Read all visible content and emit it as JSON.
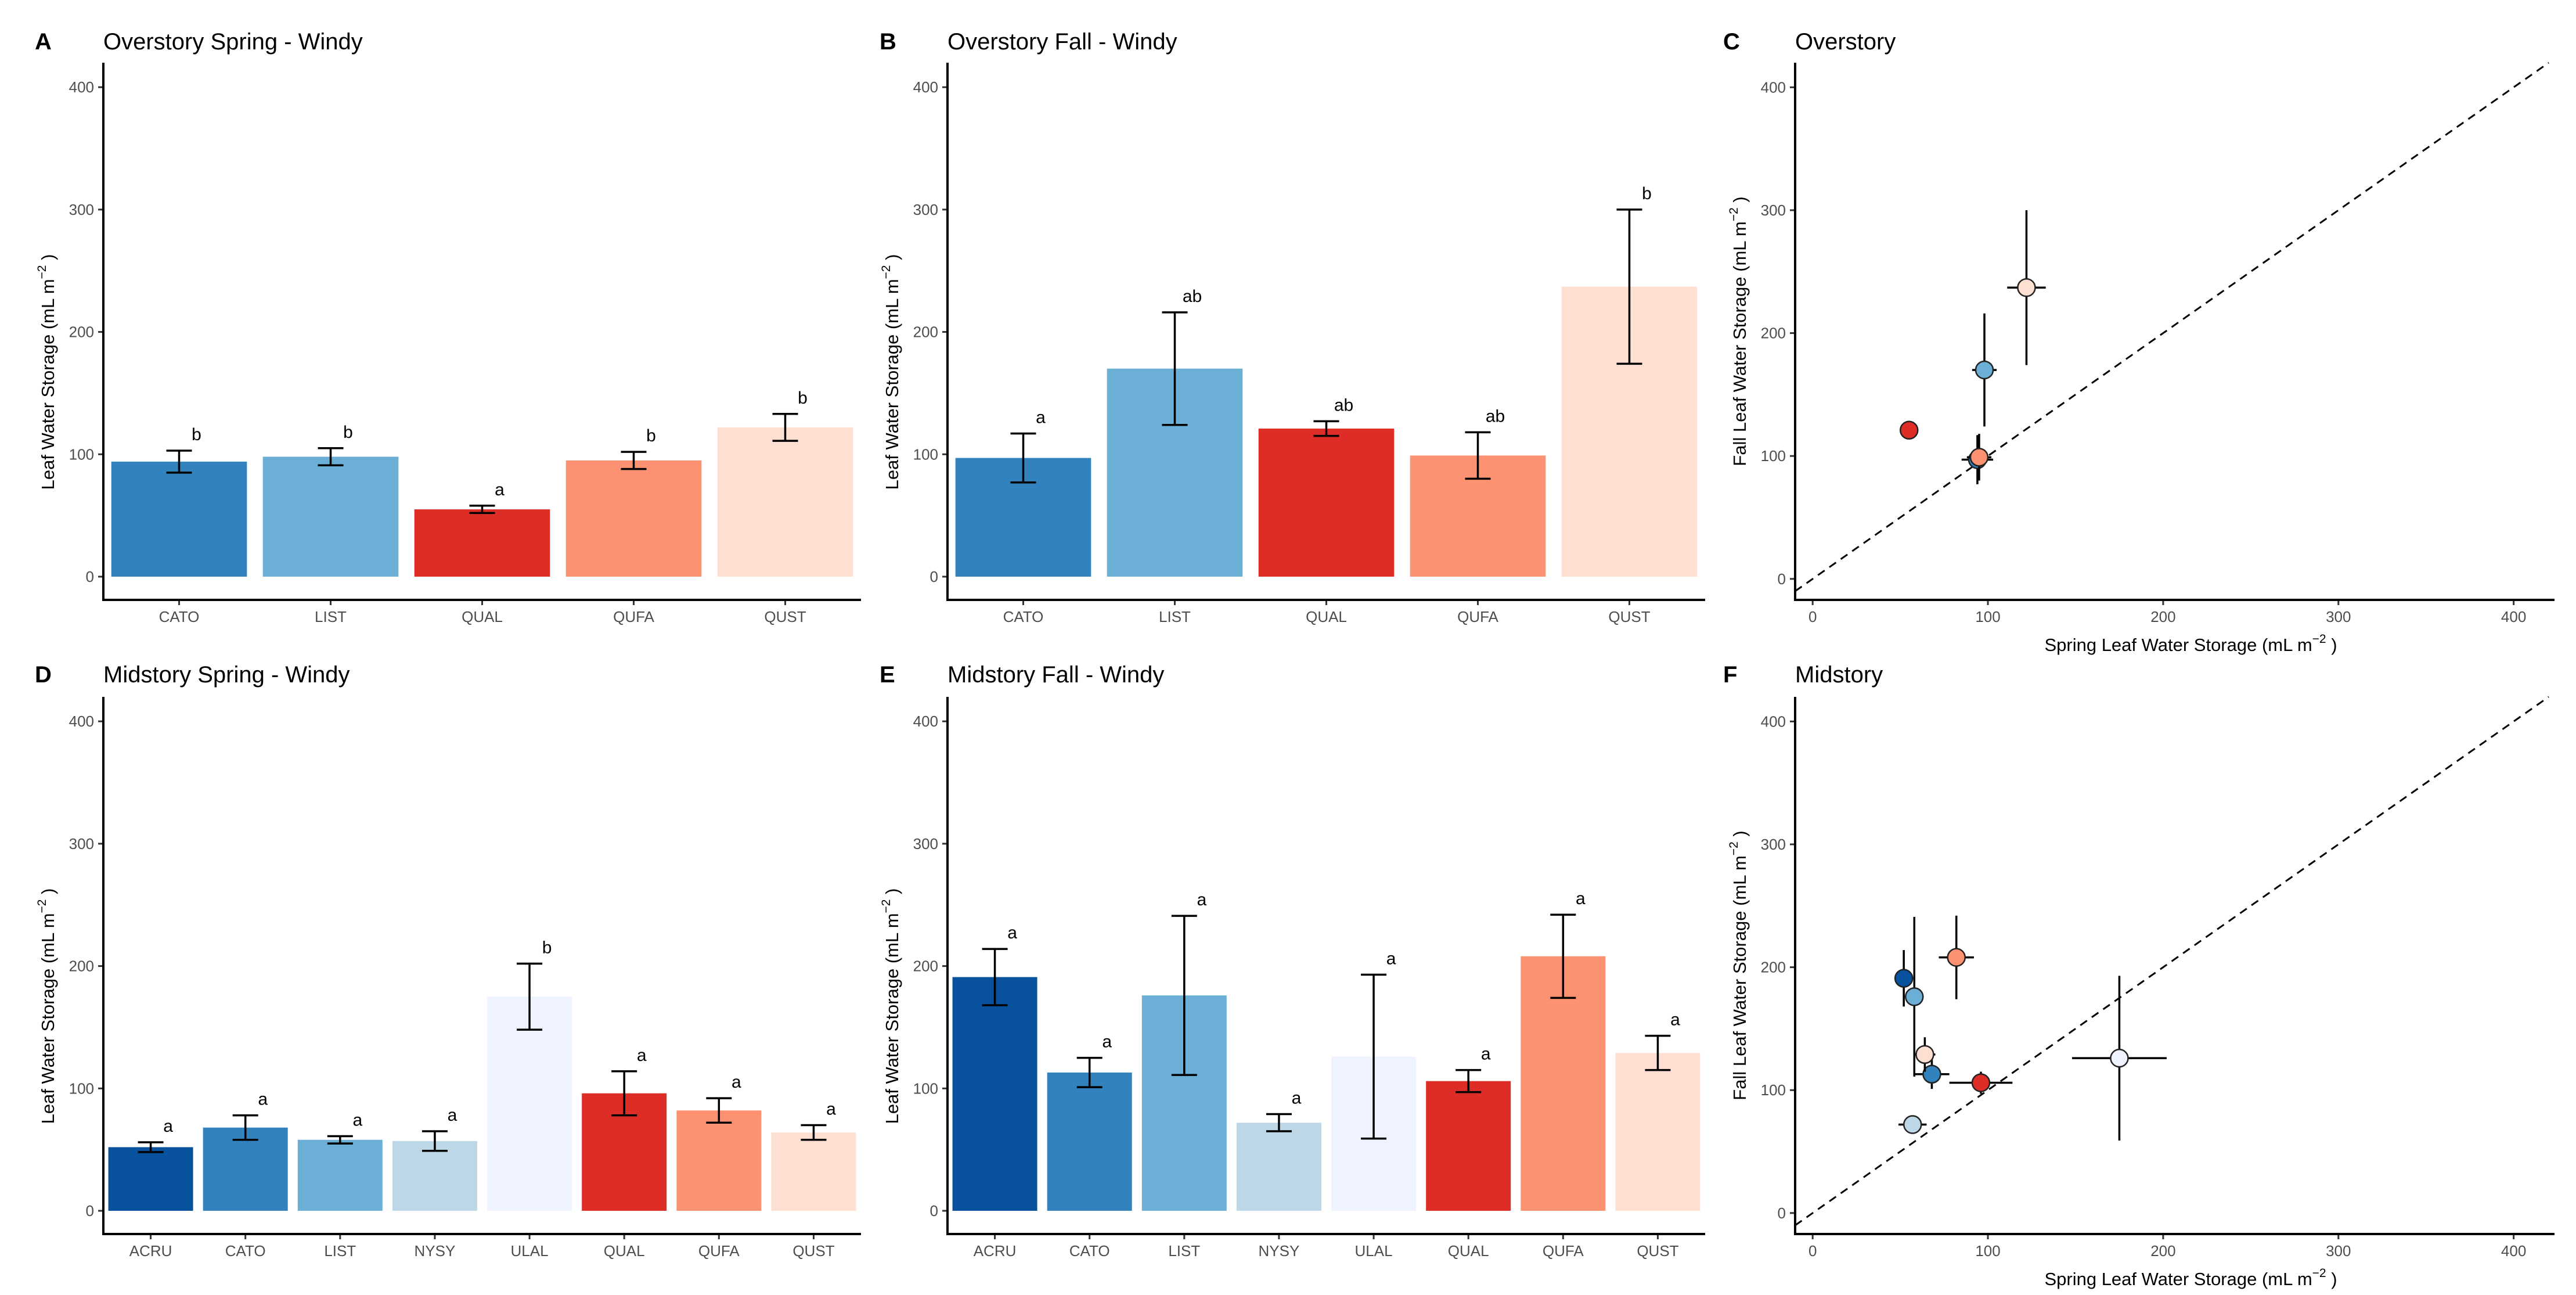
{
  "figure": {
    "y_axis_title": "Leaf Water Storage (mL m",
    "scatter_x_title": "Spring Leaf Water Storage (mL m",
    "scatter_y_title": "Fall Leaf Water Storage (mL m",
    "unit_superscript": "−2",
    "unit_close": ")"
  },
  "chart_data": [
    {
      "id": "A",
      "letter": "A",
      "type": "bar",
      "title": "Overstory Spring - Windy",
      "ylabel": "Leaf Water Storage (mL m^-2)",
      "ylim": [
        0,
        420
      ],
      "yticks": [
        0,
        100,
        200,
        300,
        400
      ],
      "categories": [
        "CATO",
        "LIST",
        "QUAL",
        "QUFA",
        "QUST"
      ],
      "values": [
        94,
        98,
        55,
        95,
        122
      ],
      "errors": [
        9,
        7,
        3,
        7,
        11
      ],
      "labels": [
        "b",
        "b",
        "a",
        "b",
        "b"
      ],
      "colors": [
        "#3182bd",
        "#6baed6",
        "#de2d26",
        "#fc9272",
        "#fee0d2"
      ]
    },
    {
      "id": "B",
      "letter": "B",
      "type": "bar",
      "title": "Overstory Fall - Windy",
      "ylabel": "Leaf Water Storage (mL m^-2)",
      "ylim": [
        0,
        420
      ],
      "yticks": [
        0,
        100,
        200,
        300,
        400
      ],
      "categories": [
        "CATO",
        "LIST",
        "QUAL",
        "QUFA",
        "QUST"
      ],
      "values": [
        97,
        170,
        121,
        99,
        237
      ],
      "errors": [
        20,
        46,
        6,
        19,
        63
      ],
      "labels": [
        "a",
        "ab",
        "ab",
        "ab",
        "b"
      ],
      "colors": [
        "#3182bd",
        "#6baed6",
        "#de2d26",
        "#fc9272",
        "#fee0d2"
      ]
    },
    {
      "id": "C",
      "letter": "C",
      "type": "scatter",
      "title": "Overstory",
      "xlabel": "Spring Leaf Water Storage (mL m^-2)",
      "ylabel": "Fall Leaf Water Storage (mL m^-2)",
      "xlim": [
        -10,
        420
      ],
      "ylim": [
        -10,
        420
      ],
      "xticks": [
        0,
        100,
        200,
        300,
        400
      ],
      "yticks": [
        0,
        100,
        200,
        300,
        400
      ],
      "reference_line": "1:1 dashed",
      "points": [
        {
          "species": "CATO",
          "x": 94,
          "y": 97,
          "xerr": 9,
          "yerr": 20,
          "color": "#3182bd"
        },
        {
          "species": "LIST",
          "x": 98,
          "y": 170,
          "xerr": 7,
          "yerr": 46,
          "color": "#6baed6"
        },
        {
          "species": "QUAL",
          "x": 55,
          "y": 121,
          "xerr": 3,
          "yerr": 6,
          "color": "#de2d26"
        },
        {
          "species": "QUFA",
          "x": 95,
          "y": 99,
          "xerr": 7,
          "yerr": 19,
          "color": "#fc9272"
        },
        {
          "species": "QUST",
          "x": 122,
          "y": 237,
          "xerr": 11,
          "yerr": 63,
          "color": "#fee0d2"
        }
      ]
    },
    {
      "id": "D",
      "letter": "D",
      "type": "bar",
      "title": "Midstory Spring - Windy",
      "ylabel": "Leaf Water Storage (mL m^-2)",
      "ylim": [
        0,
        420
      ],
      "yticks": [
        0,
        100,
        200,
        300,
        400
      ],
      "categories": [
        "ACRU",
        "CATO",
        "LIST",
        "NYSY",
        "ULAL",
        "QUAL",
        "QUFA",
        "QUST"
      ],
      "values": [
        52,
        68,
        58,
        57,
        175,
        96,
        82,
        64
      ],
      "errors": [
        4,
        10,
        3,
        8,
        27,
        18,
        10,
        6
      ],
      "labels": [
        "a",
        "a",
        "a",
        "a",
        "b",
        "a",
        "a",
        "a"
      ],
      "colors": [
        "#08519c",
        "#3182bd",
        "#6baed6",
        "#bdd7e7",
        "#eff3ff",
        "#de2d26",
        "#fc9272",
        "#fee0d2"
      ]
    },
    {
      "id": "E",
      "letter": "E",
      "type": "bar",
      "title": "Midstory Fall - Windy",
      "ylabel": "Leaf Water Storage (mL m^-2)",
      "ylim": [
        0,
        420
      ],
      "yticks": [
        0,
        100,
        200,
        300,
        400
      ],
      "categories": [
        "ACRU",
        "CATO",
        "LIST",
        "NYSY",
        "ULAL",
        "QUAL",
        "QUFA",
        "QUST"
      ],
      "values": [
        191,
        113,
        176,
        72,
        126,
        106,
        208,
        129
      ],
      "errors": [
        23,
        12,
        65,
        7,
        67,
        9,
        34,
        14
      ],
      "labels": [
        "a",
        "a",
        "a",
        "a",
        "a",
        "a",
        "a",
        "a"
      ],
      "colors": [
        "#08519c",
        "#3182bd",
        "#6baed6",
        "#bdd7e7",
        "#eff3ff",
        "#de2d26",
        "#fc9272",
        "#fee0d2"
      ]
    },
    {
      "id": "F",
      "letter": "F",
      "type": "scatter",
      "title": "Midstory",
      "xlabel": "Spring Leaf Water Storage (mL m^-2)",
      "ylabel": "Fall Leaf Water Storage (mL m^-2)",
      "xlim": [
        -10,
        420
      ],
      "ylim": [
        -10,
        420
      ],
      "xticks": [
        0,
        100,
        200,
        300,
        400
      ],
      "yticks": [
        0,
        100,
        200,
        300,
        400
      ],
      "reference_line": "1:1 dashed",
      "points": [
        {
          "species": "ACRU",
          "x": 52,
          "y": 191,
          "xerr": 4,
          "yerr": 23,
          "color": "#08519c"
        },
        {
          "species": "CATO",
          "x": 68,
          "y": 113,
          "xerr": 10,
          "yerr": 12,
          "color": "#3182bd"
        },
        {
          "species": "LIST",
          "x": 58,
          "y": 176,
          "xerr": 3,
          "yerr": 65,
          "color": "#6baed6"
        },
        {
          "species": "NYSY",
          "x": 57,
          "y": 72,
          "xerr": 8,
          "yerr": 7,
          "color": "#bdd7e7"
        },
        {
          "species": "ULAL",
          "x": 175,
          "y": 126,
          "xerr": 27,
          "yerr": 67,
          "color": "#eff3ff"
        },
        {
          "species": "QUAL",
          "x": 96,
          "y": 106,
          "xerr": 18,
          "yerr": 9,
          "color": "#de2d26"
        },
        {
          "species": "QUFA",
          "x": 82,
          "y": 208,
          "xerr": 10,
          "yerr": 34,
          "color": "#fc9272"
        },
        {
          "species": "QUST",
          "x": 64,
          "y": 129,
          "xerr": 6,
          "yerr": 14,
          "color": "#fee0d2"
        }
      ]
    }
  ]
}
